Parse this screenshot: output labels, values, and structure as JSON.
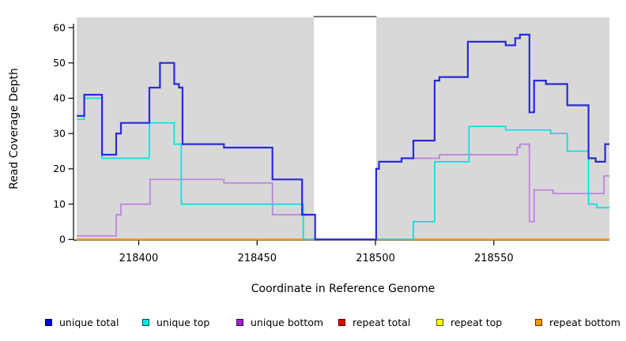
{
  "figure_title": "",
  "axes": {
    "xlabel": "Coordinate in Reference Genome",
    "ylabel": "Read Coverage Depth",
    "x_tick_labels": [
      "218400",
      "218450",
      "218500",
      "218550"
    ],
    "y_tick_labels": [
      "0",
      "10",
      "20",
      "30",
      "40",
      "50",
      "60"
    ]
  },
  "legend": {
    "items": [
      {
        "label": "unique total",
        "color": "#0000e6"
      },
      {
        "label": "unique top",
        "color": "#00e6e6"
      },
      {
        "label": "unique bottom",
        "color": "#a21fd6"
      },
      {
        "label": "repeat total",
        "color": "#e60000"
      },
      {
        "label": "repeat top",
        "color": "#ffff00"
      },
      {
        "label": "repeat bottom",
        "color": "#ff9300"
      }
    ]
  },
  "colors": {
    "plot_background_band": "#d8d8d8",
    "gap_fill": "#ffffff",
    "gap_cap_line": "#4d4d4d",
    "axis": "#000000",
    "unique_total_line": "#2a2ad8",
    "unique_top_line": "#00e2e2",
    "unique_bottom_line": "#bd7ede",
    "repeat_total_line": "#e60000",
    "repeat_top_line": "#ffff00",
    "repeat_bottom_line": "#ff9300"
  },
  "chart_data": {
    "type": "line",
    "subtype": "step-coverage",
    "title": "",
    "xlabel": "Coordinate in Reference Genome",
    "ylabel": "Read Coverage Depth",
    "x_domain": [
      218373.8,
      218598.8
    ],
    "ylim": [
      0,
      63
    ],
    "x_ticks": [
      218400,
      218450,
      218500,
      218550
    ],
    "y_ticks": [
      0,
      10,
      20,
      30,
      40,
      50,
      60
    ],
    "grid": false,
    "legend_position": "bottom",
    "shaded_regions": [
      {
        "x0": 218373.8,
        "x1": 218474.0
      },
      {
        "x0": 218500.3,
        "x1": 218598.8
      }
    ],
    "gap_region": {
      "x0": 218474.0,
      "x1": 218500.3,
      "note": "white gap with dark cap line at top"
    },
    "series": [
      {
        "name": "repeat total",
        "color_key": "repeat_total_line",
        "width": 1.8,
        "points": [
          [
            218373.8,
            0
          ]
        ]
      },
      {
        "name": "repeat top",
        "color_key": "repeat_top_line",
        "width": 1.8,
        "points": [
          [
            218373.8,
            0
          ]
        ]
      },
      {
        "name": "repeat bottom",
        "color_key": "repeat_bottom_line",
        "width": 1.8,
        "points": [
          [
            218373.8,
            0
          ]
        ]
      },
      {
        "name": "unique bottom",
        "color_key": "unique_bottom_line",
        "width": 1.7,
        "points": [
          [
            218373.8,
            1
          ],
          [
            218390.5,
            7
          ],
          [
            218392.5,
            10
          ],
          [
            218404.8,
            17
          ],
          [
            218436,
            16
          ],
          [
            218456.5,
            7
          ],
          [
            218474.5,
            0
          ],
          [
            218500.3,
            20
          ],
          [
            218501.5,
            22
          ],
          [
            218511,
            23
          ],
          [
            218527,
            24
          ],
          [
            218559.8,
            26
          ],
          [
            218561,
            27
          ],
          [
            218565,
            5
          ],
          [
            218567,
            14
          ],
          [
            218575,
            13
          ],
          [
            218596.5,
            18
          ]
        ]
      },
      {
        "name": "unique top",
        "color_key": "unique_top_line",
        "width": 1.7,
        "points": [
          [
            218373.8,
            34
          ],
          [
            218377,
            40
          ],
          [
            218384.5,
            23
          ],
          [
            218404.5,
            33
          ],
          [
            218415,
            27
          ],
          [
            218418,
            10
          ],
          [
            218469.5,
            0
          ],
          [
            218516,
            5
          ],
          [
            218525,
            22
          ],
          [
            218539.5,
            32
          ],
          [
            218555,
            31
          ],
          [
            218574,
            30
          ],
          [
            218581,
            25
          ],
          [
            218590,
            10
          ],
          [
            218593.5,
            9
          ]
        ]
      },
      {
        "name": "unique total",
        "color_key": "unique_total_line",
        "width": 2.2,
        "points": [
          [
            218373.8,
            35
          ],
          [
            218377,
            41
          ],
          [
            218384.5,
            24
          ],
          [
            218390.5,
            30
          ],
          [
            218392.5,
            33
          ],
          [
            218404.5,
            43
          ],
          [
            218409,
            50
          ],
          [
            218415,
            44
          ],
          [
            218417,
            43
          ],
          [
            218418.5,
            27
          ],
          [
            218436,
            26
          ],
          [
            218456.5,
            17
          ],
          [
            218469,
            7
          ],
          [
            218474.5,
            0
          ],
          [
            218500.3,
            20
          ],
          [
            218501.5,
            22
          ],
          [
            218511,
            23
          ],
          [
            218516,
            28
          ],
          [
            218525,
            45
          ],
          [
            218527,
            46
          ],
          [
            218539,
            56
          ],
          [
            218555,
            55
          ],
          [
            218559,
            57
          ],
          [
            218561,
            58
          ],
          [
            218565,
            36
          ],
          [
            218567,
            45
          ],
          [
            218572,
            44
          ],
          [
            218581,
            38
          ],
          [
            218590,
            23
          ],
          [
            218593,
            22
          ],
          [
            218597,
            27
          ]
        ]
      }
    ]
  }
}
